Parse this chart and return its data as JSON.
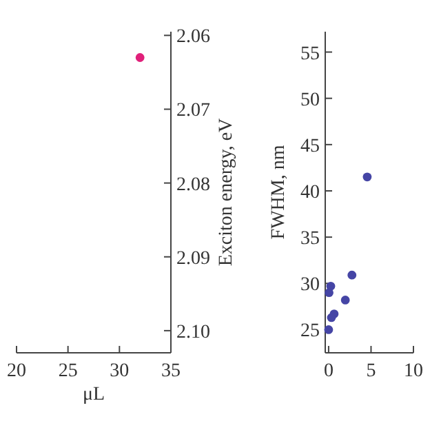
{
  "chart_data": [
    {
      "type": "scatter",
      "xlabel": "μL",
      "y2label": "Exciton energy, eV",
      "xlim": [
        20,
        35
      ],
      "xticks": [
        20,
        25,
        30,
        35
      ],
      "y2lim": [
        2.103,
        2.0595
      ],
      "y2ticks": [
        {
          "value": 2.06,
          "label": "2.06"
        },
        {
          "value": 2.07,
          "label": "2.07"
        },
        {
          "value": 2.08,
          "label": "2.08"
        },
        {
          "value": 2.09,
          "label": "2.09"
        },
        {
          "value": 2.1,
          "label": "2.10"
        }
      ],
      "marker": "circle",
      "series": [
        {
          "axis": "y2",
          "color": "#e0207a",
          "x": [
            32
          ],
          "values": [
            2.063
          ]
        }
      ]
    },
    {
      "type": "scatter",
      "ylabel": "FWHM, nm",
      "xlim": [
        -0.4,
        10
      ],
      "xticks": [
        0,
        5,
        10
      ],
      "ylim": [
        22.5,
        57.2
      ],
      "yticks": [
        25,
        30,
        35,
        40,
        45,
        50,
        55
      ],
      "marker": "circle",
      "series": [
        {
          "color": "#4545a5",
          "x": [
            4.55,
            2.75,
            1.97,
            0.25,
            0.05,
            0.65,
            0.33,
            0.0
          ],
          "values": [
            41.5,
            30.9,
            28.2,
            29.7,
            29.0,
            26.7,
            26.3,
            25.0
          ]
        }
      ]
    }
  ]
}
